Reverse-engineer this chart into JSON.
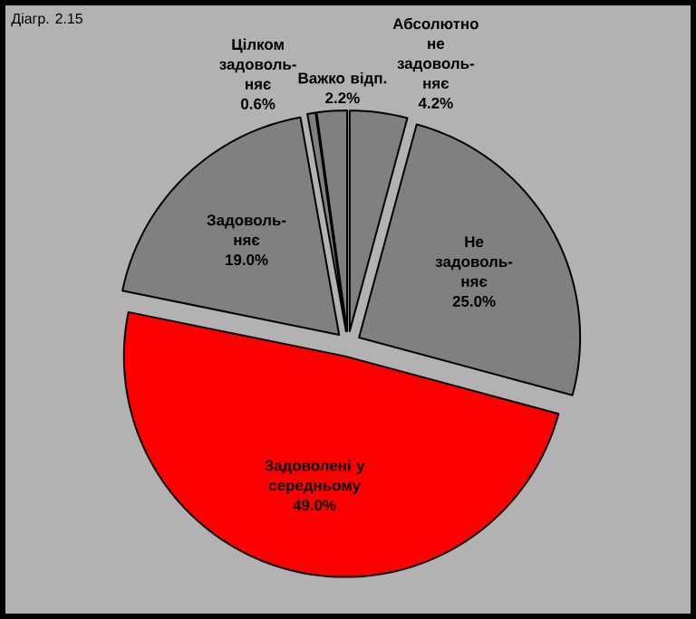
{
  "chart_data": {
    "type": "pie",
    "title": "Діагр. 2.15",
    "categories": [
      "Абсолютно не задоволь-няє",
      "Не задоволь-няє",
      "Задоволені у середньому",
      "Задоволь-няє",
      "Цілком задоволь-няє",
      "Важко відп."
    ],
    "values": [
      4.2,
      25.0,
      49.0,
      19.0,
      0.6,
      2.2
    ],
    "value_labels": [
      "4.2%",
      "25.0%",
      "49.0%",
      "19.0%",
      "0.6%",
      "2.2%"
    ],
    "colors": [
      "#808080",
      "#808080",
      "#ff0000",
      "#808080",
      "#808080",
      "#808080"
    ]
  }
}
